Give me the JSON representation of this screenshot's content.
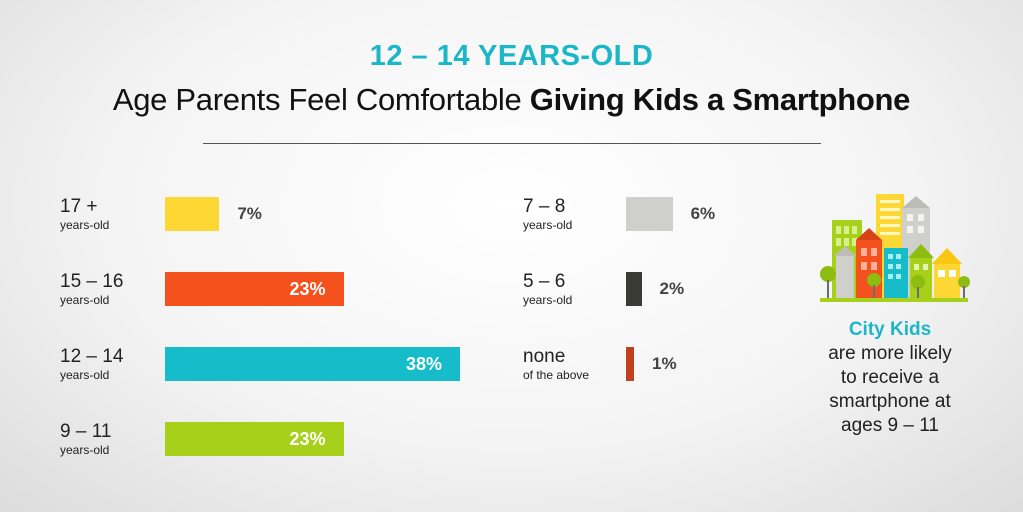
{
  "header": {
    "kicker": "12 – 14 YEARS-OLD",
    "title_regular": "Age Parents Feel Comfortable ",
    "title_bold": "Giving Kids a Smartphone"
  },
  "chart_data": {
    "type": "bar",
    "orientation": "horizontal",
    "categories": [
      "17 +",
      "15 – 16",
      "12 – 14",
      "9 – 11",
      "7 – 8",
      "5 – 6",
      "none"
    ],
    "sublabels": [
      "years-old",
      "years-old",
      "years-old",
      "years-old",
      "years-old",
      "years-old",
      "of the above"
    ],
    "values": [
      7,
      23,
      38,
      23,
      6,
      2,
      1
    ],
    "value_labels": [
      "7%",
      "23%",
      "38%",
      "23%",
      "6%",
      "2%",
      "1%"
    ],
    "colors": [
      "#fdd835",
      "#f4511e",
      "#16bcc9",
      "#a6d01a",
      "#cfcfcc",
      "#3b3b36",
      "#c0411d"
    ],
    "xlim": [
      0,
      38
    ],
    "grid": false
  },
  "sidebar": {
    "title": "City Kids",
    "lines": [
      "are more likely",
      "to receive a",
      "smartphone at",
      "ages 9 – 11"
    ]
  }
}
